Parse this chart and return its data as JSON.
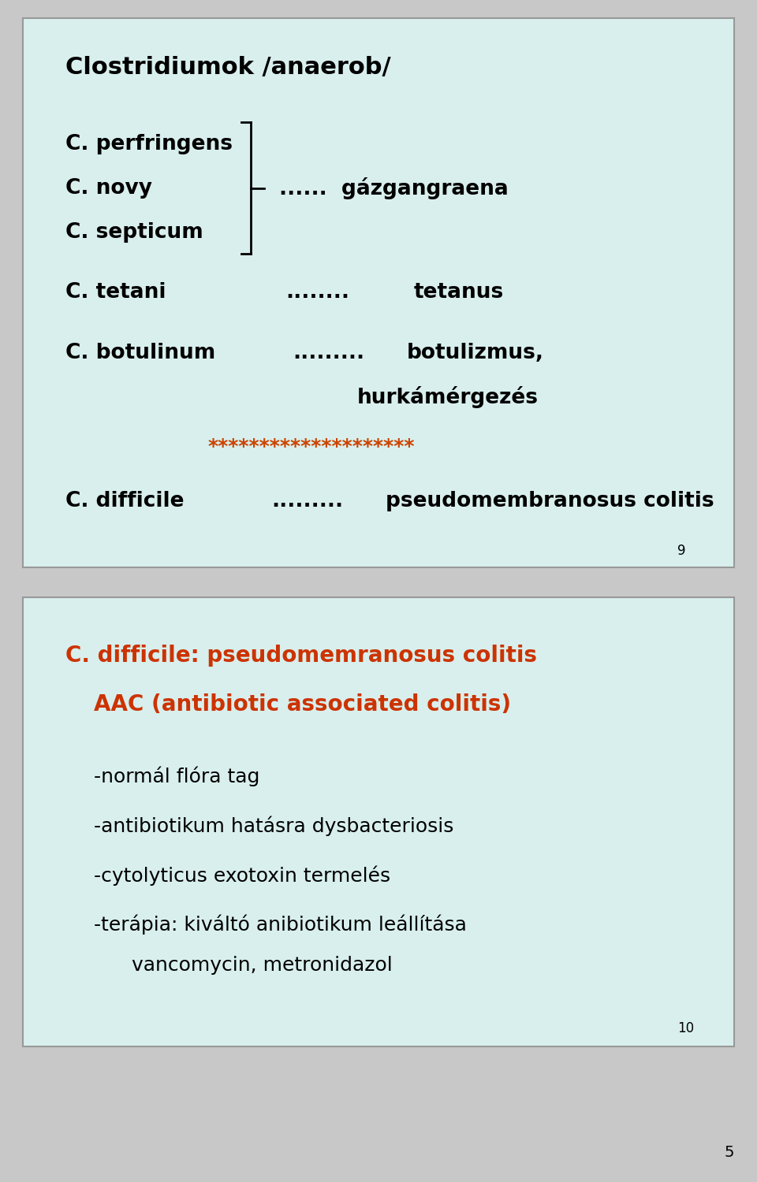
{
  "bg_color": "#c8c8c8",
  "slide_bg": "#d8efed",
  "slide1": {
    "title": "Clostridiumok /anaerob/",
    "title_color": "#000000",
    "title_fontsize": 22,
    "page_num": "9",
    "stars": "********************",
    "stars_color": "#cc4400",
    "gazgangraena": "......  gázgangraena",
    "tetanus_dots": "........",
    "botulinum_dots": ".........",
    "difficile_dots": ".........",
    "hurka": "hurkámérgezés",
    "botulizmus": "botulizmus,",
    "tetanus": "tetanus",
    "pseudomem": "pseudomembranosus colitis"
  },
  "slide2": {
    "heading1": "C. difficile: pseudomemranosus colitis",
    "heading2": "AAC (antibiotic associated colitis)",
    "heading_color": "#cc3300",
    "heading_fontsize": 20,
    "bullet_lines": [
      "-normál flóra tag",
      "-antibiotikum hatásra dysbacteriosis",
      "-cytolyticus exotoxin termelés",
      "-terápia: kiváltó anibiotikum leállítása",
      "      vancomycin, metronidazol"
    ],
    "bullet_color": "#000000",
    "bullet_fontsize": 18,
    "page_num": "10"
  },
  "bottom_num": "5"
}
